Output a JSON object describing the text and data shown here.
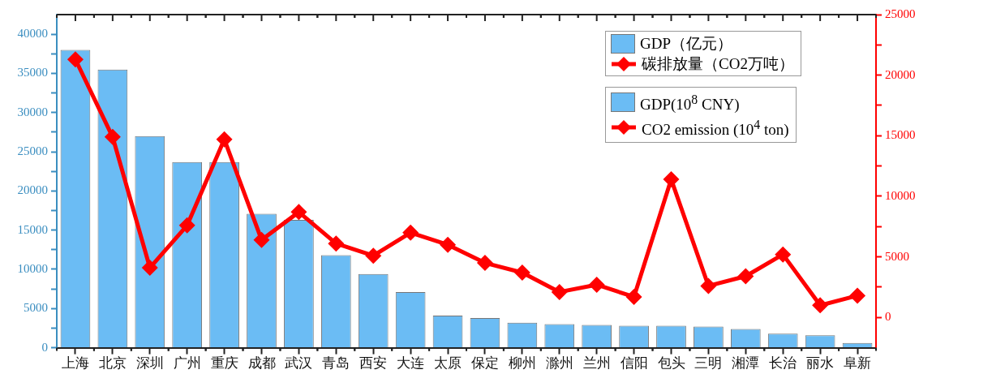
{
  "chart_data": {
    "type": "bar",
    "categories": [
      "上海",
      "北京",
      "深圳",
      "广州",
      "重庆",
      "成都",
      "武汉",
      "青岛",
      "西安",
      "大连",
      "太原",
      "保定",
      "柳州",
      "滁州",
      "兰州",
      "信阳",
      "包头",
      "三明",
      "湘潭",
      "长治",
      "丽水",
      "阜新"
    ],
    "series": [
      {
        "name": "GDP（亿元）",
        "color": "#6bbcf4",
        "values": [
          38000,
          35500,
          27000,
          23700,
          23700,
          17100,
          16300,
          11800,
          9400,
          7100,
          4100,
          3800,
          3200,
          3000,
          2900,
          2800,
          2800,
          2700,
          2400,
          1800,
          1600,
          600
        ]
      },
      {
        "name": "碳排放量（CO2万吨）",
        "type": "line",
        "axis": "y2",
        "color": "#ff0000",
        "marker": "diamond",
        "line_style": "solid",
        "values": [
          21300,
          14900,
          4100,
          7600,
          14700,
          6400,
          8700,
          6100,
          5100,
          7000,
          6000,
          4500,
          3700,
          2100,
          2700,
          1700,
          11400,
          2600,
          3400,
          5200,
          1000,
          1800
        ]
      }
    ],
    "ylim": [
      0,
      42500
    ],
    "yticks": [
      0,
      {
        "value": 2500,
        "label": null
      },
      5000,
      {
        "value": 7500,
        "label": null
      },
      10000,
      {
        "value": 12500,
        "label": null
      },
      15000,
      {
        "value": 17500,
        "label": null
      },
      20000,
      {
        "value": 22500,
        "label": null
      },
      25000,
      {
        "value": 27500,
        "label": null
      },
      30000,
      {
        "value": 32500,
        "label": null
      },
      35000,
      {
        "value": 37500,
        "label": null
      },
      40000
    ],
    "y2lim": [
      -2500,
      25000
    ],
    "y2ticks": [
      0,
      {
        "value": 2500,
        "label": null
      },
      5000,
      {
        "value": 7500,
        "label": null
      },
      10000,
      {
        "value": 12500,
        "label": null
      },
      15000,
      {
        "value": 17500,
        "label": null
      },
      20000,
      {
        "value": 22500,
        "label": null
      },
      25000
    ],
    "annotations": [
      "GDP(10$^{8}$ CNY)",
      "CO2 emission (10$^{4}$ ton)"
    ],
    "legend": "top right",
    "grid": false
  }
}
